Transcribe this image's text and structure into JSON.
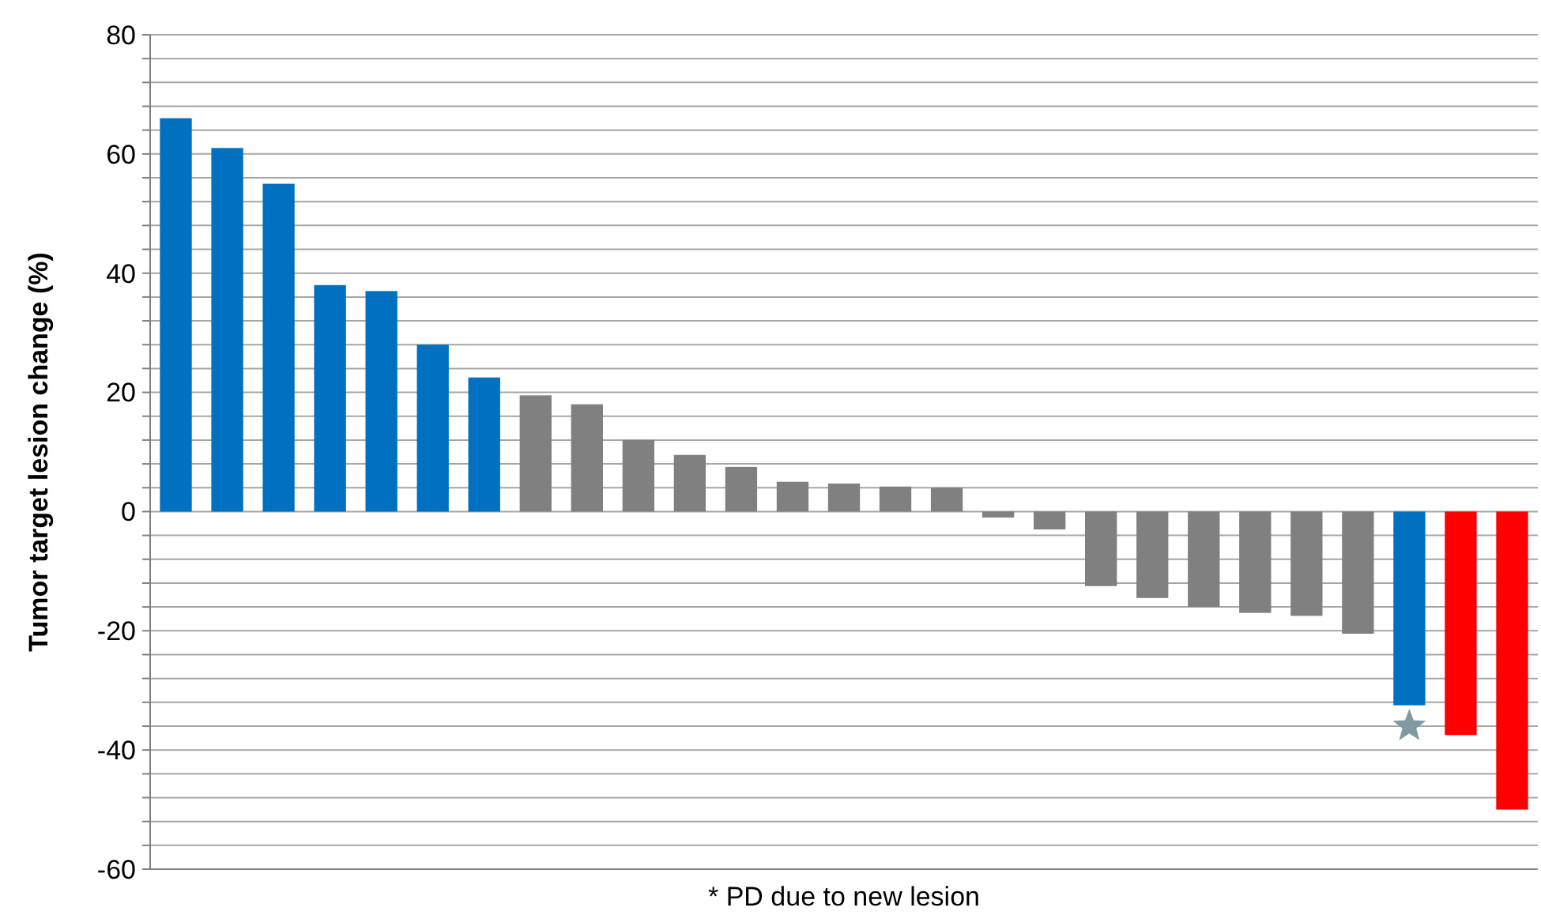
{
  "chart_data": {
    "type": "bar",
    "ylabel": "Tumor target lesion change (%)",
    "xlabel": "* PD due to new lesion",
    "categories": [
      null,
      null,
      null,
      null,
      null,
      null,
      null,
      null,
      null,
      null,
      null,
      null,
      null,
      null,
      null,
      null,
      null,
      null,
      null,
      null,
      null,
      null,
      null,
      null,
      null,
      null,
      null
    ],
    "series": [
      {
        "values": [
          66,
          61,
          55,
          38,
          37,
          28,
          22.5,
          19.5,
          18,
          12,
          9.5,
          7.5,
          5,
          4.7,
          4.2,
          4,
          -1,
          -3,
          -12.5,
          -14.5,
          -16,
          -17,
          -17.5,
          -20.5,
          -32.5,
          -37.5,
          -50
        ],
        "colors": [
          "#0070c0",
          "#0070c0",
          "#0070c0",
          "#0070c0",
          "#0070c0",
          "#0070c0",
          "#0070c0",
          "#808080",
          "#808080",
          "#808080",
          "#808080",
          "#808080",
          "#808080",
          "#808080",
          "#808080",
          "#808080",
          "#808080",
          "#808080",
          "#808080",
          "#808080",
          "#808080",
          "#808080",
          "#808080",
          "#808080",
          "#0070c0",
          "#ff0000",
          "#ff0000"
        ]
      },
      {
        "type": "scatter",
        "marker": "star",
        "color": "#7f9aa0",
        "values": [
          null,
          null,
          null,
          null,
          null,
          null,
          null,
          null,
          null,
          null,
          null,
          null,
          null,
          null,
          null,
          null,
          null,
          null,
          null,
          null,
          null,
          null,
          null,
          null,
          -36,
          null,
          null
        ]
      }
    ],
    "ylim": [
      -60,
      80
    ],
    "yticks": [
      -60,
      {
        "value": -56,
        "label": null
      },
      {
        "value": -52,
        "label": null
      },
      {
        "value": -48,
        "label": null
      },
      {
        "value": -44,
        "label": null
      },
      -40,
      {
        "value": -36,
        "label": null
      },
      {
        "value": -32,
        "label": null
      },
      {
        "value": -28,
        "label": null
      },
      {
        "value": -24,
        "label": null
      },
      -20,
      {
        "value": -16,
        "label": null
      },
      {
        "value": -12,
        "label": null
      },
      {
        "value": -8,
        "label": null
      },
      {
        "value": -4,
        "label": null
      },
      0,
      {
        "value": 4,
        "label": null
      },
      {
        "value": 8,
        "label": null
      },
      {
        "value": 12,
        "label": null
      },
      {
        "value": 16,
        "label": null
      },
      20,
      {
        "value": 24,
        "label": null
      },
      {
        "value": 28,
        "label": null
      },
      {
        "value": 32,
        "label": null
      },
      {
        "value": 36,
        "label": null
      },
      40,
      {
        "value": 44,
        "label": null
      },
      {
        "value": 48,
        "label": null
      },
      {
        "value": 52,
        "label": null
      },
      {
        "value": 56,
        "label": null
      },
      60,
      {
        "value": 64,
        "label": null
      },
      {
        "value": 68,
        "label": null
      },
      {
        "value": 72,
        "label": null
      },
      {
        "value": 76,
        "label": null
      },
      80
    ],
    "grid": "y"
  }
}
